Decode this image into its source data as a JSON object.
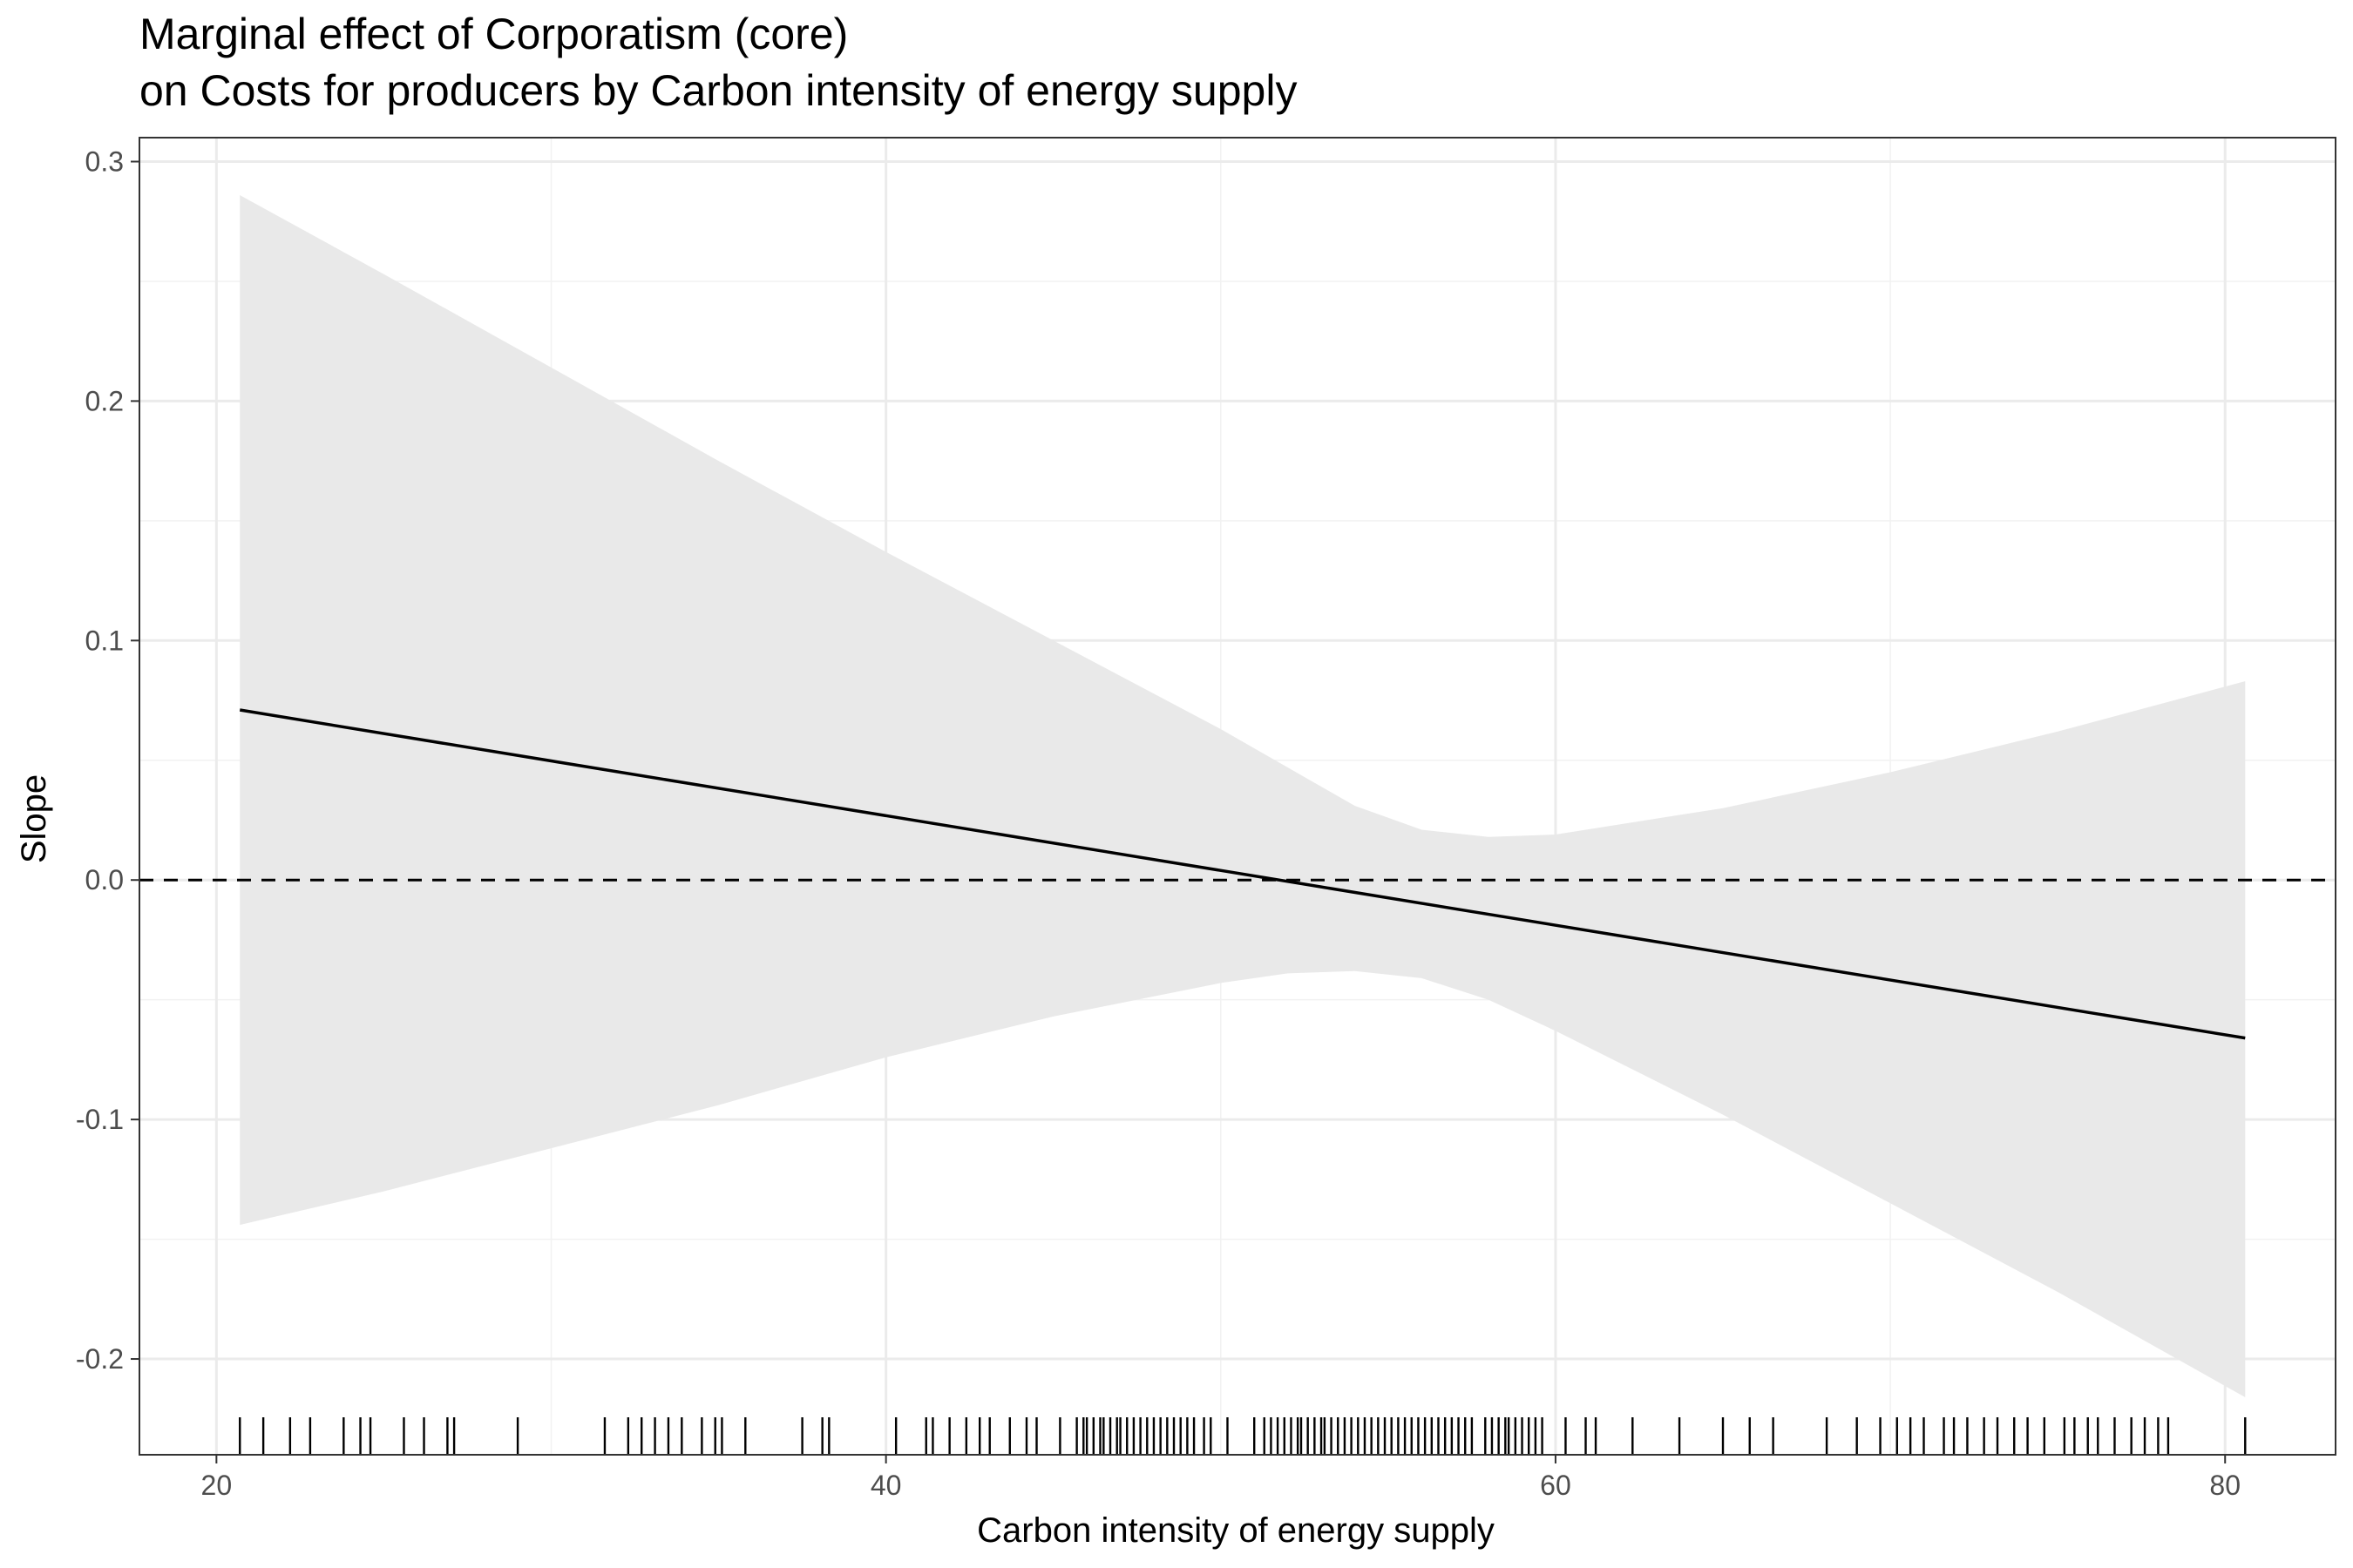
{
  "chart_data": {
    "type": "line",
    "title": "Marginal effect of Corporatism (core)",
    "subtitle": "on Costs for producers by Carbon intensity of energy supply",
    "xlabel": "Carbon intensity of energy supply",
    "ylabel": "Slope",
    "xlim": [
      17.7,
      83.3
    ],
    "ylim": [
      -0.24,
      0.31
    ],
    "x_ticks": [
      20,
      40,
      60,
      80
    ],
    "y_ticks": [
      0.3,
      0.2,
      0.1,
      0.0,
      -0.1,
      -0.2
    ],
    "x_tick_labels": [
      "20",
      "40",
      "60",
      "80"
    ],
    "y_tick_labels": [
      "0.3",
      "0.2",
      "0.1",
      "0.0",
      "-0.1",
      "-0.2"
    ],
    "grid": true,
    "reference_line": {
      "y": 0,
      "style": "dashed"
    },
    "line": {
      "x": [
        20.7,
        80.6
      ],
      "y": [
        0.071,
        -0.066
      ]
    },
    "confidence_band": {
      "x": [
        20.7,
        25,
        30,
        35,
        40,
        45,
        50,
        52,
        54,
        56,
        58,
        60,
        65,
        70,
        75,
        80.6
      ],
      "upper": [
        0.286,
        0.253,
        0.214,
        0.175,
        0.137,
        0.1,
        0.063,
        0.047,
        0.031,
        0.021,
        0.018,
        0.019,
        0.03,
        0.045,
        0.062,
        0.083
      ],
      "lower": [
        -0.144,
        -0.13,
        -0.112,
        -0.094,
        -0.074,
        -0.057,
        -0.043,
        -0.039,
        -0.038,
        -0.041,
        -0.05,
        -0.063,
        -0.098,
        -0.135,
        -0.172,
        -0.216
      ]
    },
    "rug": [
      20.7,
      21.4,
      22.2,
      22.8,
      23.8,
      24.3,
      24.6,
      25.6,
      26.2,
      26.9,
      27.1,
      29,
      31.6,
      32.3,
      32.7,
      33.1,
      33.5,
      33.9,
      34.5,
      34.9,
      35.1,
      35.8,
      37.5,
      38.1,
      38.3,
      40.3,
      41.2,
      41.4,
      41.9,
      42.4,
      42.8,
      43.1,
      43.7,
      44.2,
      44.5,
      45.2,
      45.7,
      45.9,
      46,
      46.2,
      46.4,
      46.5,
      46.7,
      46.9,
      47,
      47.2,
      47.4,
      47.6,
      47.8,
      48,
      48.2,
      48.4,
      48.6,
      48.8,
      49,
      49.2,
      49.5,
      49.7,
      50.2,
      51,
      51.3,
      51.5,
      51.7,
      51.9,
      52.1,
      52.3,
      52.4,
      52.6,
      52.8,
      53,
      53.1,
      53.3,
      53.5,
      53.7,
      53.9,
      54.1,
      54.3,
      54.5,
      54.7,
      54.9,
      55.1,
      55.3,
      55.5,
      55.7,
      55.9,
      56.1,
      56.3,
      56.5,
      56.7,
      56.9,
      57.1,
      57.3,
      57.5,
      57.9,
      58.1,
      58.3,
      58.5,
      58.6,
      58.8,
      59,
      59.2,
      59.4,
      59.6,
      60.3,
      60.9,
      61.2,
      62.3,
      63.7,
      65,
      65.8,
      66.5,
      68.1,
      69,
      69.7,
      70.2,
      70.6,
      71,
      71.6,
      71.9,
      72.3,
      72.8,
      73.2,
      73.7,
      74.1,
      74.6,
      75.2,
      75.5,
      75.9,
      76.2,
      76.7,
      77.2,
      77.6,
      78,
      78.3,
      80.6
    ]
  }
}
